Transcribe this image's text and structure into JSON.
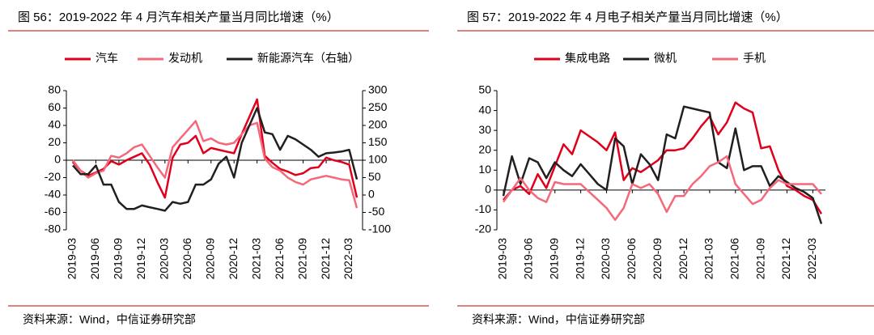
{
  "chart_data": [
    {
      "type": "line",
      "title": "图 56：2019-2022 年 4 月汽车相关产量当月同比增速（%）",
      "source": "资料来源：Wind，中信证券研究部",
      "categories": [
        "2019-03",
        null,
        null,
        "2019-06",
        null,
        null,
        "2019-09",
        null,
        null,
        "2019-12",
        null,
        null,
        "2020-03",
        null,
        null,
        "2020-06",
        null,
        null,
        "2020-09",
        null,
        null,
        "2020-12",
        null,
        null,
        "2021-03",
        null,
        null,
        "2021-06",
        null,
        null,
        "2021-09",
        null,
        null,
        "2021-12",
        null,
        null,
        "2022-03",
        null
      ],
      "ylim": [
        -80,
        80
      ],
      "yticks": [
        -80,
        -60,
        -40,
        -20,
        0,
        20,
        40,
        60,
        80
      ],
      "y2lim": [
        -100,
        300
      ],
      "y2ticks": [
        -100,
        -50,
        0,
        50,
        100,
        150,
        200,
        250,
        300
      ],
      "series": [
        {
          "name": "汽车",
          "color": "#e0001b",
          "values": [
            -2,
            -12,
            -18,
            -14,
            -10,
            -1,
            -5,
            0,
            4,
            8,
            -5,
            -25,
            -43,
            3,
            18,
            20,
            28,
            8,
            14,
            12,
            10,
            8,
            30,
            50,
            70,
            5,
            -3,
            -10,
            -13,
            -17,
            -15,
            -9,
            -8,
            3,
            0,
            -2,
            -5,
            -43
          ]
        },
        {
          "name": "发动机",
          "color": "#f4687a",
          "values": [
            0,
            -12,
            -20,
            -15,
            -12,
            5,
            3,
            8,
            15,
            18,
            5,
            -8,
            -20,
            15,
            25,
            35,
            45,
            22,
            25,
            20,
            18,
            20,
            30,
            40,
            43,
            2,
            -8,
            -12,
            -20,
            -25,
            -28,
            -22,
            -20,
            -18,
            -20,
            -22,
            -23,
            -55
          ]
        },
        {
          "name": "新能源汽车（右轴）",
          "color": "#231f20",
          "axis": "y2",
          "values": [
            85,
            60,
            60,
            85,
            30,
            30,
            -20,
            -40,
            -40,
            -30,
            -35,
            -40,
            -45,
            -20,
            -25,
            -20,
            30,
            30,
            45,
            90,
            110,
            50,
            150,
            200,
            250,
            180,
            175,
            130,
            170,
            160,
            145,
            130,
            110,
            120,
            122,
            125,
            130,
            45
          ]
        }
      ]
    },
    {
      "type": "line",
      "title": "图 57：2019-2022 年 4 月电子相关产量当月同比增速（%）",
      "source": "资料来源：Wind，中信证券研究部",
      "categories": [
        "2019-03",
        null,
        null,
        "2019-06",
        null,
        null,
        "2019-09",
        null,
        null,
        "2019-12",
        null,
        null,
        "2020-03",
        null,
        null,
        "2020-06",
        null,
        null,
        "2020-09",
        null,
        null,
        "2020-12",
        null,
        null,
        "2021-03",
        null,
        null,
        "2021-06",
        null,
        null,
        "2021-09",
        null,
        null,
        "2021-12",
        null,
        null,
        "2022-03",
        null
      ],
      "ylim": [
        -20,
        50
      ],
      "yticks": [
        -20,
        -10,
        0,
        10,
        20,
        30,
        40,
        50
      ],
      "series": [
        {
          "name": "集成电路",
          "color": "#e0001b",
          "values": [
            -5,
            0,
            2,
            -2,
            8,
            1,
            12,
            23,
            18,
            30,
            27,
            24,
            20,
            29,
            5,
            11,
            9,
            12,
            15,
            20,
            20,
            21,
            26,
            32,
            37,
            28,
            34,
            44,
            41,
            39,
            21,
            22,
            10,
            2,
            0,
            -3,
            -5,
            -12
          ]
        },
        {
          "name": "微机",
          "color": "#231f20",
          "values": [
            -3,
            17,
            3,
            16,
            14,
            6,
            14,
            10,
            7,
            13,
            8,
            3,
            0,
            26,
            22,
            3,
            18,
            13,
            5,
            28,
            26,
            42,
            41,
            40,
            39,
            14,
            11,
            31,
            10,
            12,
            12,
            2,
            7,
            4,
            1,
            -1,
            -4,
            -17
          ]
        },
        {
          "name": "手机",
          "color": "#f4687a",
          "values": [
            -6,
            0,
            6,
            0,
            -4,
            -6,
            4,
            3,
            3,
            3,
            -1,
            -5,
            -9,
            -15,
            -9,
            3,
            1,
            3,
            -2,
            -11,
            -3,
            -3,
            3,
            7,
            12,
            14,
            17,
            3,
            -2,
            -7,
            -5,
            1,
            5,
            3,
            3,
            3,
            3,
            -2
          ]
        }
      ]
    }
  ]
}
